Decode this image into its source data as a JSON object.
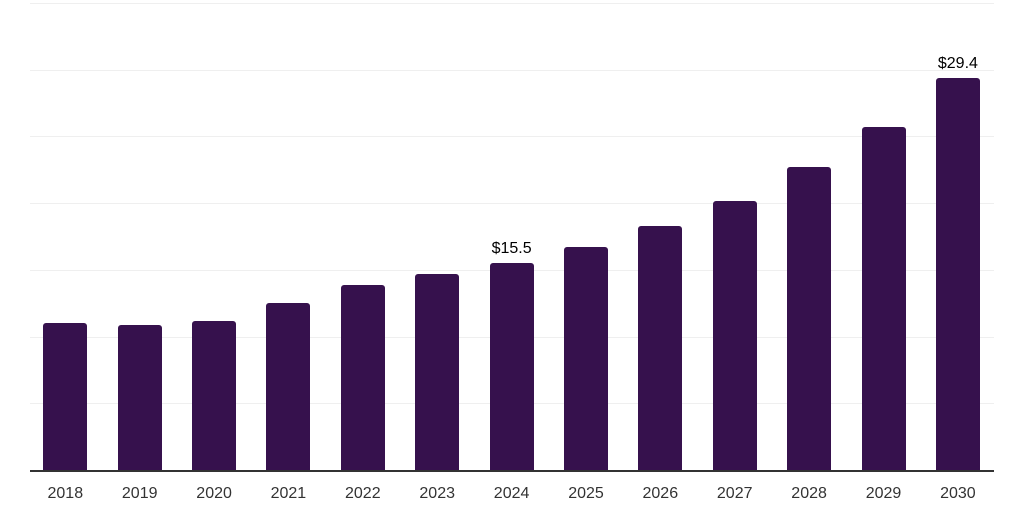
{
  "chart_data": {
    "type": "bar",
    "title": "",
    "xlabel": "",
    "ylabel": "",
    "categories": [
      "2018",
      "2019",
      "2020",
      "2021",
      "2022",
      "2023",
      "2024",
      "2025",
      "2026",
      "2027",
      "2028",
      "2029",
      "2030"
    ],
    "values": [
      11.0,
      10.9,
      11.2,
      12.5,
      13.9,
      14.7,
      15.5,
      16.7,
      18.3,
      20.2,
      22.7,
      25.7,
      29.4
    ],
    "data_labels": {
      "2024": "$15.5",
      "2030": "$29.4"
    },
    "ylim": [
      0,
      35
    ],
    "gridline_step": 5,
    "grid": "horizontal",
    "legend": "none",
    "colors": {
      "bar": "#36114D",
      "gridline": "#efefef",
      "axis_line": "#333333",
      "tick_label": "#333333",
      "value_label": "#000000",
      "background": "#ffffff"
    }
  }
}
